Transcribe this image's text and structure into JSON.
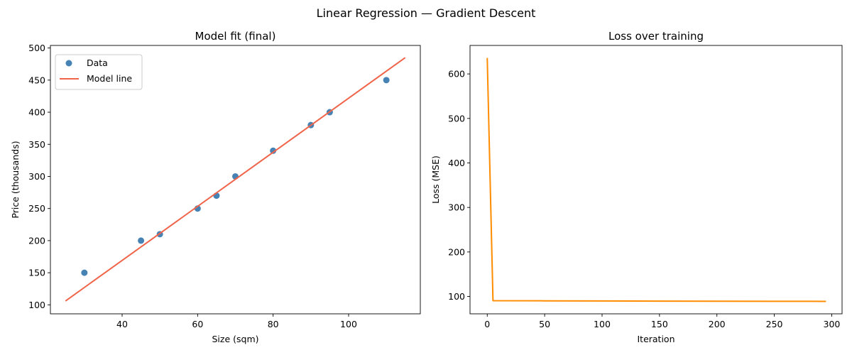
{
  "figure": {
    "suptitle": "Linear Regression — Gradient Descent"
  },
  "colors": {
    "data_points": "#4682b4",
    "model_line": "#f0644a",
    "loss_line": "#ff8c00"
  },
  "chart_data": [
    {
      "type": "scatter",
      "title": "Model fit (final)",
      "xlabel": "Size (sqm)",
      "ylabel": "Price (thousands)",
      "xlim": [
        21,
        119
      ],
      "ylim": [
        86,
        504
      ],
      "xticks": [
        40,
        60,
        80,
        100
      ],
      "yticks": [
        100,
        150,
        200,
        250,
        300,
        350,
        400,
        450,
        500
      ],
      "grid": false,
      "legend": "upper-left",
      "series": [
        {
          "name": "Data",
          "kind": "scatter",
          "x": [
            30,
            45,
            50,
            60,
            65,
            70,
            80,
            90,
            95,
            110
          ],
          "y": [
            150,
            200,
            210,
            250,
            270,
            300,
            340,
            380,
            400,
            450
          ]
        },
        {
          "name": "Model line",
          "kind": "line",
          "x": [
            25,
            115
          ],
          "y": [
            106,
            485
          ]
        }
      ]
    },
    {
      "type": "line",
      "title": "Loss over training",
      "xlabel": "Iteration",
      "ylabel": "Loss (MSE)",
      "xlim": [
        -15,
        309
      ],
      "ylim": [
        61,
        664
      ],
      "xticks": [
        0,
        50,
        100,
        150,
        200,
        250,
        300
      ],
      "yticks": [
        100,
        200,
        300,
        400,
        500,
        600
      ],
      "grid": false,
      "series": [
        {
          "name": "",
          "kind": "line",
          "x": [
            0,
            5,
            50,
            100,
            150,
            200,
            250,
            295
          ],
          "y": [
            636,
            90.5,
            90.2,
            89.9,
            89.6,
            89.4,
            89.2,
            89
          ]
        }
      ]
    }
  ]
}
